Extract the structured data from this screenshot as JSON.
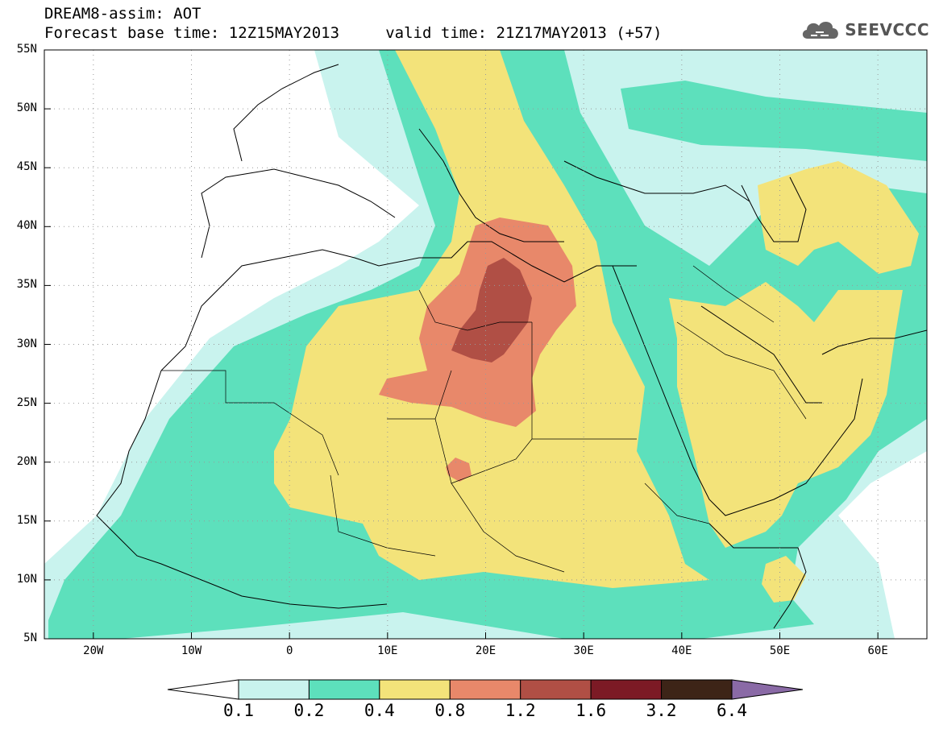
{
  "header": {
    "title_line1": "DREAM8-assim: AOT",
    "title_line2": "Forecast base time: 12Z15MAY2013     valid time: 21Z17MAY2013 (+57)",
    "logo_text": "SEEVCCC"
  },
  "map": {
    "projection": "lat-lon",
    "lon_range": [
      -25,
      65
    ],
    "lat_range": [
      5,
      55
    ],
    "lat_labels": [
      "55N",
      "50N",
      "45N",
      "40N",
      "35N",
      "30N",
      "25N",
      "20N",
      "15N",
      "10N",
      "5N"
    ],
    "lon_labels": [
      "20W",
      "10W",
      "0",
      "10E",
      "20E",
      "30E",
      "40E",
      "50E",
      "60E"
    ],
    "gridlines": "dotted",
    "colorbar": {
      "levels": [
        "0.1",
        "0.2",
        "0.4",
        "0.8",
        "1.2",
        "1.6",
        "3.2",
        "6.4"
      ],
      "colors": [
        "#c9f3ee",
        "#5de0bc",
        "#f3e37a",
        "#e8886a",
        "#b04f45",
        "#7c1a25",
        "#3d2417"
      ],
      "over_color": "#8a6aa6",
      "under_color": "#ffffff"
    }
  }
}
